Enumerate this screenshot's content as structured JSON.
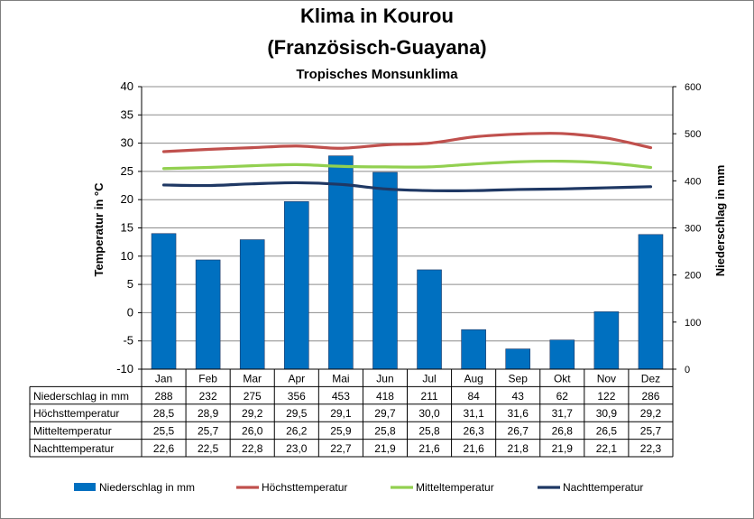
{
  "chart_data": {
    "type": "bar+line",
    "title": "Klima in Kourou",
    "title_line2": "(Französisch-Guayana)",
    "subtitle": "Tropisches Monsunklima",
    "ylabel_left": "Temperatur in °C",
    "ylabel_right": "Niederschlag in mm",
    "ylim_left": [
      -10,
      40
    ],
    "yticks_left": [
      40,
      35,
      30,
      25,
      20,
      15,
      10,
      5,
      0,
      -5,
      -10
    ],
    "ylim_right": [
      0,
      600
    ],
    "yticks_right": [
      600,
      500,
      400,
      300,
      200,
      100,
      0
    ],
    "categories": [
      "Jan",
      "Feb",
      "Mar",
      "Apr",
      "Mai",
      "Jun",
      "Jul",
      "Aug",
      "Sep",
      "Okt",
      "Nov",
      "Dez"
    ],
    "series": [
      {
        "name": "Niederschlag in mm",
        "kind": "bar",
        "axis": "right",
        "color": "#0070C0",
        "values": [
          288,
          232,
          275,
          356,
          453,
          418,
          211,
          84,
          43,
          62,
          122,
          286
        ],
        "labels": [
          "288",
          "232",
          "275",
          "356",
          "453",
          "418",
          "211",
          "84",
          "43",
          "62",
          "122",
          "286"
        ]
      },
      {
        "name": "Höchsttemperatur",
        "kind": "line",
        "axis": "left",
        "color": "#C0504D",
        "values": [
          28.5,
          28.9,
          29.2,
          29.5,
          29.1,
          29.7,
          30.0,
          31.1,
          31.6,
          31.7,
          30.9,
          29.2
        ],
        "labels": [
          "28,5",
          "28,9",
          "29,2",
          "29,5",
          "29,1",
          "29,7",
          "30,0",
          "31,1",
          "31,6",
          "31,7",
          "30,9",
          "29,2"
        ]
      },
      {
        "name": "Mitteltemperatur",
        "kind": "line",
        "axis": "left",
        "color": "#92D050",
        "values": [
          25.5,
          25.7,
          26.0,
          26.2,
          25.9,
          25.8,
          25.8,
          26.3,
          26.7,
          26.8,
          26.5,
          25.7
        ],
        "labels": [
          "25,5",
          "25,7",
          "26,0",
          "26,2",
          "25,9",
          "25,8",
          "25,8",
          "26,3",
          "26,7",
          "26,8",
          "26,5",
          "25,7"
        ]
      },
      {
        "name": "Nachttemperatur",
        "kind": "line",
        "axis": "left",
        "color": "#1F3864",
        "values": [
          22.6,
          22.5,
          22.8,
          23.0,
          22.7,
          21.9,
          21.6,
          21.6,
          21.8,
          21.9,
          22.1,
          22.3
        ],
        "labels": [
          "22,6",
          "22,5",
          "22,8",
          "23,0",
          "22,7",
          "21,9",
          "21,6",
          "21,6",
          "21,8",
          "21,9",
          "22,1",
          "22,3"
        ]
      }
    ]
  }
}
